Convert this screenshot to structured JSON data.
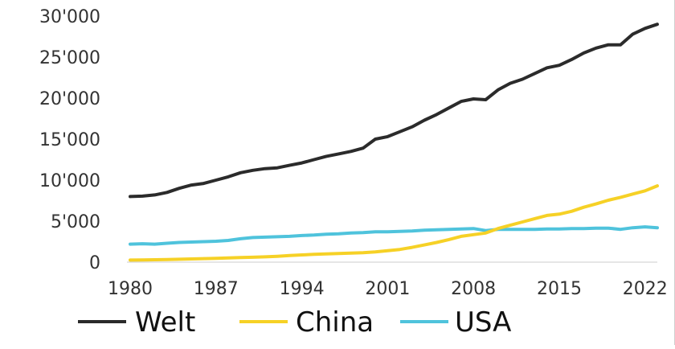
{
  "chart_data": {
    "type": "line",
    "title": "",
    "xlabel": "",
    "ylabel": "",
    "xlim": [
      1980,
      2023
    ],
    "ylim": [
      0,
      30000
    ],
    "x_ticks": [
      "1980",
      "1987",
      "1994",
      "2001",
      "2008",
      "2015",
      "2022"
    ],
    "y_ticks": [
      "0",
      "5'000",
      "10'000",
      "15'000",
      "20'000",
      "25'000",
      "30'000"
    ],
    "grid": false,
    "legend_position": "bottom",
    "x": [
      1980,
      1981,
      1982,
      1983,
      1984,
      1985,
      1986,
      1987,
      1988,
      1989,
      1990,
      1991,
      1992,
      1993,
      1994,
      1995,
      1996,
      1997,
      1998,
      1999,
      2000,
      2001,
      2002,
      2003,
      2004,
      2005,
      2006,
      2007,
      2008,
      2009,
      2010,
      2011,
      2012,
      2013,
      2014,
      2015,
      2016,
      2017,
      2018,
      2019,
      2020,
      2021,
      2022,
      2023
    ],
    "series": [
      {
        "name": "Welt",
        "color": "#2b2b2b",
        "values": [
          8000,
          8050,
          8200,
          8500,
          9000,
          9400,
          9600,
          10000,
          10400,
          10900,
          11200,
          11400,
          11500,
          11800,
          12100,
          12500,
          12900,
          13200,
          13500,
          13900,
          15000,
          15300,
          15900,
          16500,
          17300,
          18000,
          18800,
          19600,
          19900,
          19800,
          21000,
          21800,
          22300,
          23000,
          23700,
          24000,
          24700,
          25500,
          26100,
          26500,
          26500,
          27800,
          28500,
          29000
        ]
      },
      {
        "name": "China",
        "color": "#f6d126",
        "values": [
          250,
          270,
          290,
          320,
          350,
          390,
          430,
          470,
          520,
          560,
          600,
          650,
          720,
          800,
          880,
          950,
          1000,
          1050,
          1100,
          1150,
          1250,
          1400,
          1550,
          1800,
          2100,
          2400,
          2750,
          3150,
          3350,
          3550,
          4100,
          4500,
          4900,
          5300,
          5700,
          5850,
          6200,
          6700,
          7100,
          7550,
          7900,
          8300,
          8700,
          9300
        ]
      },
      {
        "name": "USA",
        "color": "#4fc3dc",
        "values": [
          2200,
          2250,
          2200,
          2300,
          2400,
          2450,
          2500,
          2550,
          2650,
          2850,
          3000,
          3050,
          3100,
          3150,
          3250,
          3300,
          3400,
          3450,
          3550,
          3600,
          3700,
          3700,
          3750,
          3800,
          3900,
          3950,
          4000,
          4050,
          4100,
          3850,
          4000,
          4000,
          4000,
          4000,
          4050,
          4050,
          4100,
          4100,
          4150,
          4150,
          4000,
          4200,
          4300,
          4200
        ]
      }
    ]
  }
}
